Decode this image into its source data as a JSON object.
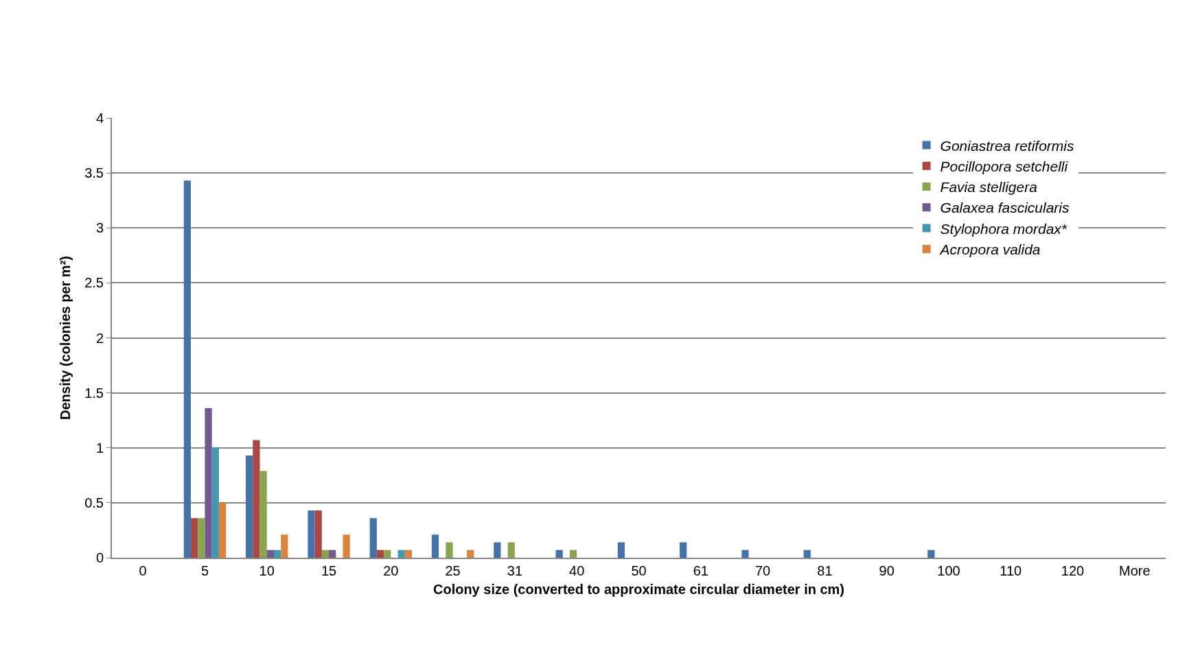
{
  "chart_data": {
    "type": "bar",
    "xlabel": "Colony size (converted to approximate circular diameter in cm)",
    "ylabel": "Density (colonies per m²)",
    "categories": [
      "0",
      "5",
      "10",
      "15",
      "20",
      "25",
      "31",
      "40",
      "50",
      "61",
      "70",
      "81",
      "90",
      "100",
      "110",
      "120",
      "More"
    ],
    "series": [
      {
        "name": "Goniastrea retiformis",
        "color": "#4572a7",
        "values": [
          0,
          3.43,
          0.93,
          0.43,
          0.36,
          0.21,
          0.14,
          0.07,
          0.14,
          0.14,
          0.07,
          0.07,
          0,
          0.07,
          0,
          0,
          0
        ]
      },
      {
        "name": "Pocillopora setchelli",
        "color": "#aa4643",
        "values": [
          0,
          0.36,
          1.07,
          0.43,
          0.07,
          0,
          0,
          0,
          0,
          0,
          0,
          0,
          0,
          0,
          0,
          0,
          0
        ]
      },
      {
        "name": "Favia stelligera",
        "color": "#89a54e",
        "values": [
          0,
          0.36,
          0.79,
          0.07,
          0.07,
          0.14,
          0.14,
          0.07,
          0,
          0,
          0,
          0,
          0,
          0,
          0,
          0,
          0
        ]
      },
      {
        "name": "Galaxea fascicularis",
        "color": "#71588f",
        "values": [
          0,
          1.36,
          0.07,
          0.07,
          0,
          0,
          0,
          0,
          0,
          0,
          0,
          0,
          0,
          0,
          0,
          0,
          0
        ]
      },
      {
        "name": "Stylophora mordax*",
        "color": "#4198af",
        "values": [
          0,
          1.0,
          0.07,
          0,
          0.07,
          0,
          0,
          0,
          0,
          0,
          0,
          0,
          0,
          0,
          0,
          0,
          0
        ]
      },
      {
        "name": "Acropora valida",
        "color": "#db843d",
        "values": [
          0,
          0.5,
          0.21,
          0.21,
          0.07,
          0.07,
          0,
          0,
          0,
          0,
          0,
          0,
          0,
          0,
          0,
          0,
          0
        ]
      }
    ],
    "ylim": [
      0,
      4
    ],
    "yticks": [
      0,
      0.5,
      1,
      1.5,
      2,
      2.5,
      3,
      3.5,
      4
    ],
    "grid": "y",
    "legend": "top right"
  }
}
